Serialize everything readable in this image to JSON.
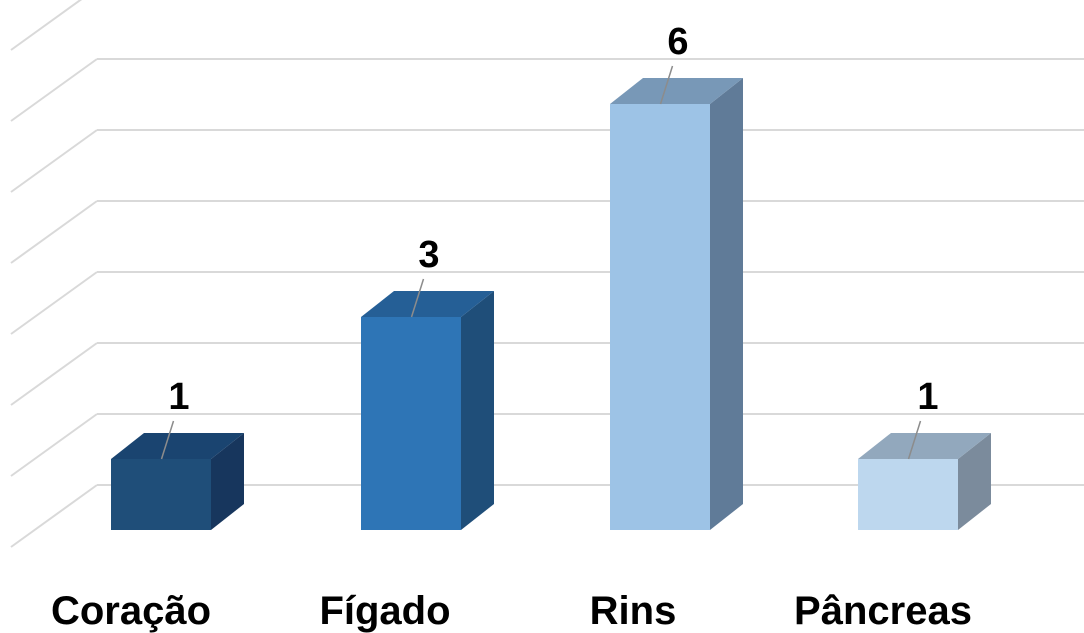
{
  "chart_data": {
    "type": "bar",
    "style": "3d-column",
    "categories": [
      "Coração",
      "Fígado",
      "Rins",
      "Pâncreas"
    ],
    "values": [
      1,
      3,
      6,
      1
    ],
    "data_labels": [
      "1",
      "3",
      "6",
      "1"
    ],
    "title": "",
    "xlabel": "",
    "ylabel": "",
    "ylim": [
      0,
      7
    ],
    "grid": true,
    "legend": "none",
    "colors": {
      "Coração": {
        "front": "#1f4e79",
        "side": "#17365d",
        "top": "#1a4470"
      },
      "Fígado": {
        "front": "#2e75b6",
        "side": "#1f4e79",
        "top": "#255f96"
      },
      "Rins": {
        "front": "#9dc3e6",
        "side": "#607b98",
        "top": "#7898b7"
      },
      "Pâncreas": {
        "front": "#bdd7ee",
        "side": "#7b8b9c",
        "top": "#92a8bd"
      }
    },
    "grid_color": "#d9d9d9"
  }
}
